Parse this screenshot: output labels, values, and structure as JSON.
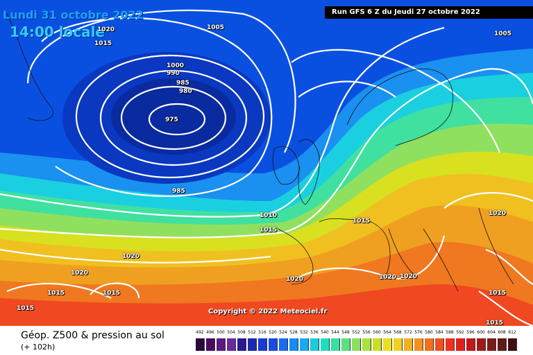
{
  "header": {
    "date": "Lundi 31 octobre 2022",
    "time": "14:00 locale",
    "run": "Run GFS 6 Z du Jeudi 27 octobre 2022"
  },
  "copyright": "Copyright © 2022 Meteociel.fr",
  "legend": {
    "title": "Géop. Z500 & pression au sol",
    "subtitle": "(+ 102h)",
    "scale_values": [
      "492",
      "496",
      "500",
      "504",
      "508",
      "512",
      "516",
      "520",
      "524",
      "528",
      "532",
      "536",
      "540",
      "544",
      "548",
      "552",
      "556",
      "560",
      "564",
      "568",
      "572",
      "576",
      "580",
      "584",
      "588",
      "592",
      "596",
      "600",
      "604",
      "608",
      "612"
    ],
    "scale_colors": [
      "#2a0a3a",
      "#4a0a5e",
      "#5a1a7e",
      "#6a2a9e",
      "#2a1a8e",
      "#1a2ab0",
      "#1a3ad0",
      "#1a4ae0",
      "#1a6af0",
      "#1a8af0",
      "#1aaaf0",
      "#1acae0",
      "#1ae0c0",
      "#3ae0a0",
      "#5ae080",
      "#8ae060",
      "#aae040",
      "#cae020",
      "#eae020",
      "#f0d020",
      "#f0b020",
      "#f09020",
      "#f07020",
      "#f05020",
      "#f03020",
      "#e02020",
      "#c01a1a",
      "#a01a1a",
      "#801a1a",
      "#601a1a",
      "#401010"
    ]
  },
  "isobars": [
    {
      "text": "1020",
      "id": "a"
    },
    {
      "text": "1015",
      "id": "b"
    },
    {
      "text": "1005",
      "id": "c"
    },
    {
      "text": "1005",
      "id": "d"
    },
    {
      "text": "1000",
      "id": "e"
    },
    {
      "text": "990",
      "id": "f"
    },
    {
      "text": "985",
      "id": "g"
    },
    {
      "text": "980",
      "id": "h"
    },
    {
      "text": "975",
      "id": "i"
    },
    {
      "text": "985",
      "id": "j"
    },
    {
      "text": "1010",
      "id": "k"
    },
    {
      "text": "1015",
      "id": "l"
    },
    {
      "text": "1015",
      "id": "m"
    },
    {
      "text": "1020",
      "id": "n"
    },
    {
      "text": "1020",
      "id": "o"
    },
    {
      "text": "1015",
      "id": "p"
    },
    {
      "text": "1015",
      "id": "q"
    },
    {
      "text": "1015",
      "id": "r"
    },
    {
      "text": "1020",
      "id": "s"
    },
    {
      "text": "1020",
      "id": "t"
    },
    {
      "text": "1020",
      "id": "u"
    },
    {
      "text": "1020",
      "id": "v"
    },
    {
      "text": "1015",
      "id": "w"
    },
    {
      "text": "1015",
      "id": "x"
    }
  ]
}
